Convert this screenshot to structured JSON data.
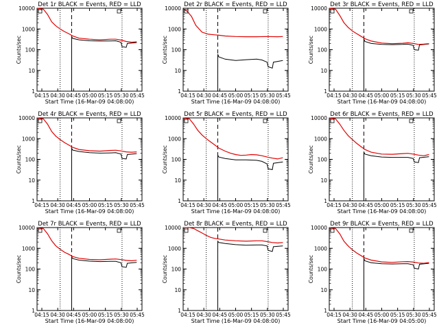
{
  "colors": {
    "events": "#000000",
    "lld": "#e00000",
    "axis": "#000000"
  },
  "chart_data": [
    {
      "type": "line",
      "title": "Det 1r BLACK = Events, RED = LLD",
      "xlabel": "Start Time (16-Mar-09 04:08:00)",
      "ylabel": "Counts/sec",
      "x_ticks": [
        "04:15",
        "04:30",
        "04:45",
        "05:00",
        "05:15",
        "05:30",
        "05:45"
      ],
      "y_ticks": [
        "1",
        "10",
        "100",
        "1000",
        "10000"
      ],
      "y_scale": "log",
      "xlim_min": [
        0,
        100
      ],
      "ylim": [
        1,
        10000
      ],
      "markers": {
        "dotted": [
          22,
          81
        ],
        "dashed": [
          33
        ]
      },
      "legend_mark": "A",
      "series": [
        {
          "name": "Events",
          "x": [
            33,
            34,
            40,
            50,
            60,
            70,
            75,
            80,
            81,
            85,
            86,
            95
          ],
          "y": [
            420,
            350,
            300,
            270,
            260,
            265,
            270,
            230,
            140,
            130,
            200,
            220
          ]
        },
        {
          "name": "LLD",
          "x": [
            0,
            6,
            10,
            14,
            18,
            22,
            26,
            30,
            34,
            40,
            50,
            60,
            70,
            75,
            80,
            85,
            90,
            95
          ],
          "y": [
            10000,
            9000,
            5000,
            2200,
            1400,
            1000,
            750,
            600,
            460,
            360,
            320,
            300,
            320,
            320,
            290,
            250,
            230,
            240
          ]
        }
      ]
    },
    {
      "type": "line",
      "title": "Det 2r BLACK = Events, RED = LLD",
      "xlabel": "Start Time (16-Mar-09 04:08:00)",
      "ylabel": "Counts/sec",
      "x_ticks": [
        "04:15",
        "04:30",
        "04:45",
        "05:00",
        "05:15",
        "05:30",
        "05:45"
      ],
      "y_ticks": [
        "1",
        "10",
        "100",
        "1000",
        "10000"
      ],
      "y_scale": "log",
      "xlim_min": [
        0,
        100
      ],
      "ylim": [
        1,
        10000
      ],
      "markers": {
        "dotted": [
          22,
          81
        ],
        "dashed": [
          33
        ]
      },
      "legend_mark": "A",
      "series": [
        {
          "name": "Events",
          "x": [
            33,
            34,
            40,
            50,
            60,
            70,
            75,
            80,
            81,
            85,
            86,
            95
          ],
          "y": [
            60,
            45,
            35,
            30,
            33,
            35,
            32,
            25,
            15,
            13,
            25,
            30
          ]
        },
        {
          "name": "LLD",
          "x": [
            0,
            4,
            8,
            12,
            18,
            24,
            30,
            34,
            40,
            50,
            60,
            70,
            80,
            90,
            95
          ],
          "y": [
            9500,
            7000,
            4000,
            1500,
            700,
            560,
            520,
            500,
            460,
            430,
            420,
            420,
            430,
            420,
            430
          ]
        }
      ]
    },
    {
      "type": "line",
      "title": "Det 3r BLACK = Events, RED = LLD",
      "xlabel": "Start Time (16-Mar-09 04:08:00)",
      "ylabel": "Counts/sec",
      "x_ticks": [
        "04:15",
        "04:30",
        "04:45",
        "05:00",
        "05:15",
        "05:30",
        "05:45"
      ],
      "y_ticks": [
        "1",
        "10",
        "100",
        "1000",
        "10000"
      ],
      "y_scale": "log",
      "xlim_min": [
        0,
        100
      ],
      "ylim": [
        1,
        10000
      ],
      "markers": {
        "dotted": [
          22,
          81
        ],
        "dashed": [
          33
        ]
      },
      "legend_mark": "A",
      "series": [
        {
          "name": "Events",
          "x": [
            33,
            34,
            40,
            50,
            60,
            70,
            75,
            80,
            81,
            85,
            86,
            95
          ],
          "y": [
            320,
            250,
            200,
            180,
            175,
            180,
            185,
            160,
            100,
            95,
            170,
            190
          ]
        },
        {
          "name": "LLD",
          "x": [
            0,
            6,
            10,
            14,
            18,
            22,
            26,
            30,
            34,
            40,
            50,
            60,
            70,
            75,
            80,
            85,
            90,
            95
          ],
          "y": [
            10000,
            9000,
            4500,
            2000,
            1200,
            800,
            600,
            450,
            340,
            260,
            210,
            195,
            205,
            215,
            200,
            180,
            185,
            195
          ]
        }
      ]
    },
    {
      "type": "line",
      "title": "Det 4r BLACK = Events, RED = LLD",
      "xlabel": "Start Time (16-Mar-09 04:08:00)",
      "ylabel": "Counts/sec",
      "x_ticks": [
        "04:15",
        "04:30",
        "04:45",
        "05:00",
        "05:15",
        "05:30",
        "05:45"
      ],
      "y_ticks": [
        "1",
        "10",
        "100",
        "1000",
        "10000"
      ],
      "y_scale": "log",
      "xlim_min": [
        0,
        100
      ],
      "ylim": [
        1,
        10000
      ],
      "markers": {
        "dotted": [
          22,
          81
        ],
        "dashed": [
          33
        ]
      },
      "legend_mark": "A",
      "series": [
        {
          "name": "Events",
          "x": [
            33,
            34,
            40,
            50,
            60,
            70,
            75,
            80,
            81,
            85,
            86,
            95
          ],
          "y": [
            340,
            280,
            240,
            210,
            200,
            205,
            210,
            180,
            110,
            105,
            170,
            190
          ]
        },
        {
          "name": "LLD",
          "x": [
            0,
            6,
            10,
            14,
            18,
            22,
            26,
            30,
            34,
            40,
            50,
            60,
            70,
            75,
            80,
            85,
            90,
            95
          ],
          "y": [
            10000,
            9000,
            5000,
            2200,
            1300,
            900,
            650,
            500,
            380,
            300,
            260,
            250,
            270,
            275,
            255,
            230,
            220,
            230
          ]
        }
      ]
    },
    {
      "type": "line",
      "title": "Det 5r BLACK = Events, RED = LLD",
      "xlabel": "Start Time (16-Mar-09 04:08:00)",
      "ylabel": "Counts/sec",
      "x_ticks": [
        "04:15",
        "04:30",
        "04:45",
        "05:00",
        "05:15",
        "05:30",
        "05:45"
      ],
      "y_ticks": [
        "1",
        "10",
        "100",
        "1000",
        "10000"
      ],
      "y_scale": "log",
      "xlim_min": [
        0,
        100
      ],
      "ylim": [
        1,
        10000
      ],
      "markers": {
        "dotted": [
          22,
          81
        ],
        "dashed": [
          33
        ]
      },
      "legend_mark": "A",
      "series": [
        {
          "name": "Events",
          "x": [
            33,
            34,
            40,
            50,
            60,
            70,
            75,
            80,
            81,
            85,
            86,
            95
          ],
          "y": [
            160,
            130,
            110,
            95,
            95,
            90,
            80,
            60,
            35,
            32,
            65,
            75
          ]
        },
        {
          "name": "LLD",
          "x": [
            0,
            6,
            10,
            14,
            18,
            22,
            26,
            30,
            34,
            40,
            45,
            50,
            55,
            60,
            65,
            70,
            75,
            80,
            85,
            90,
            95
          ],
          "y": [
            10000,
            9000,
            5000,
            2500,
            1500,
            1000,
            700,
            500,
            350,
            250,
            200,
            170,
            155,
            160,
            170,
            165,
            150,
            130,
            115,
            105,
            120
          ]
        }
      ]
    },
    {
      "type": "line",
      "title": "Det 6r BLACK = Events, RED = LLD",
      "xlabel": "Start Time (16-Mar-09 04:08:00)",
      "ylabel": "Counts/sec",
      "x_ticks": [
        "04:15",
        "04:30",
        "04:45",
        "05:00",
        "05:15",
        "05:30",
        "05:45"
      ],
      "y_ticks": [
        "1",
        "10",
        "100",
        "1000",
        "10000"
      ],
      "y_scale": "log",
      "xlim_min": [
        0,
        100
      ],
      "ylim": [
        1,
        10000
      ],
      "markers": {
        "dotted": [
          22,
          81
        ],
        "dashed": [
          33
        ]
      },
      "legend_mark": "A",
      "series": [
        {
          "name": "Events",
          "x": [
            33,
            34,
            40,
            50,
            60,
            70,
            75,
            80,
            81,
            85,
            86,
            95
          ],
          "y": [
            220,
            180,
            150,
            130,
            125,
            125,
            125,
            110,
            75,
            70,
            120,
            135
          ]
        },
        {
          "name": "LLD",
          "x": [
            0,
            6,
            10,
            14,
            18,
            22,
            26,
            30,
            34,
            40,
            50,
            60,
            70,
            75,
            80,
            85,
            90,
            95
          ],
          "y": [
            10000,
            9000,
            5000,
            2500,
            1400,
            900,
            600,
            420,
            300,
            220,
            180,
            175,
            190,
            195,
            180,
            160,
            150,
            170
          ]
        }
      ]
    },
    {
      "type": "line",
      "title": "Det 7r BLACK = Events, RED = LLD",
      "xlabel": "Start Time (16-Mar-09 04:08:00)",
      "ylabel": "Counts/sec",
      "x_ticks": [
        "04:15",
        "04:30",
        "04:45",
        "05:00",
        "05:15",
        "05:30",
        "05:45"
      ],
      "y_ticks": [
        "1",
        "10",
        "100",
        "1000",
        "10000"
      ],
      "y_scale": "log",
      "xlim_min": [
        0,
        100
      ],
      "ylim": [
        1,
        10000
      ],
      "markers": {
        "dotted": [
          22,
          81
        ],
        "dashed": [
          33
        ]
      },
      "legend_mark": "A",
      "series": [
        {
          "name": "Events",
          "x": [
            33,
            34,
            40,
            50,
            60,
            70,
            75,
            80,
            81,
            85,
            86,
            95
          ],
          "y": [
            380,
            320,
            270,
            240,
            230,
            235,
            235,
            200,
            130,
            120,
            190,
            210
          ]
        },
        {
          "name": "LLD",
          "x": [
            0,
            6,
            10,
            14,
            18,
            22,
            26,
            30,
            34,
            40,
            50,
            60,
            70,
            75,
            80,
            85,
            90,
            95
          ],
          "y": [
            10000,
            9000,
            5000,
            2300,
            1300,
            900,
            650,
            520,
            400,
            330,
            290,
            280,
            300,
            305,
            285,
            260,
            250,
            265
          ]
        }
      ]
    },
    {
      "type": "line",
      "title": "Det 8r BLACK = Events, RED = LLD",
      "xlabel": "Start Time (16-Mar-09 04:08:00)",
      "ylabel": "Counts/sec",
      "x_ticks": [
        "04:15",
        "04:30",
        "04:45",
        "05:00",
        "05:15",
        "05:30",
        "05:45"
      ],
      "y_ticks": [
        "1",
        "10",
        "100",
        "1000",
        "10000"
      ],
      "y_scale": "log",
      "xlim_min": [
        0,
        100
      ],
      "ylim": [
        1,
        10000
      ],
      "markers": {
        "dotted": [
          22,
          81
        ],
        "dashed": [
          33
        ]
      },
      "legend_mark": "A",
      "series": [
        {
          "name": "Events",
          "x": [
            33,
            34,
            40,
            50,
            60,
            70,
            75,
            80,
            81,
            85,
            86,
            95
          ],
          "y": [
            2200,
            1900,
            1700,
            1500,
            1400,
            1450,
            1450,
            1300,
            800,
            700,
            1200,
            1300
          ]
        },
        {
          "name": "LLD",
          "x": [
            0,
            6,
            10,
            14,
            18,
            22,
            26,
            30,
            34,
            40,
            50,
            60,
            70,
            75,
            80,
            85,
            90,
            95
          ],
          "y": [
            10000,
            10000,
            9000,
            7000,
            5500,
            4200,
            3400,
            3000,
            2800,
            2500,
            2300,
            2200,
            2300,
            2300,
            2100,
            1900,
            1800,
            1900
          ]
        }
      ]
    },
    {
      "type": "line",
      "title": "Det 9r BLACK = Events, RED = LLD",
      "xlabel": "Start Time (16-Mar-09 04:05:00)",
      "ylabel": "Counts/sec",
      "x_ticks": [
        "04:15",
        "04:30",
        "04:45",
        "05:00",
        "05:15",
        "05:30",
        "05:45"
      ],
      "y_ticks": [
        "1",
        "10",
        "100",
        "1000",
        "10000"
      ],
      "y_scale": "log",
      "xlim_min": [
        0,
        100
      ],
      "ylim": [
        1,
        10000
      ],
      "markers": {
        "dotted": [
          22,
          81
        ],
        "dashed": [
          33
        ]
      },
      "legend_mark": "A",
      "series": [
        {
          "name": "Events",
          "x": [
            33,
            34,
            40,
            50,
            60,
            70,
            75,
            80,
            81,
            85,
            86,
            95
          ],
          "y": [
            310,
            250,
            200,
            180,
            175,
            180,
            180,
            160,
            110,
            100,
            170,
            190
          ]
        },
        {
          "name": "LLD",
          "x": [
            0,
            6,
            10,
            14,
            18,
            22,
            26,
            30,
            34,
            40,
            50,
            60,
            70,
            75,
            80,
            85,
            90,
            95
          ],
          "y": [
            10000,
            9000,
            5000,
            2200,
            1300,
            850,
            600,
            450,
            340,
            270,
            220,
            210,
            225,
            230,
            215,
            195,
            190,
            205
          ]
        }
      ]
    }
  ]
}
